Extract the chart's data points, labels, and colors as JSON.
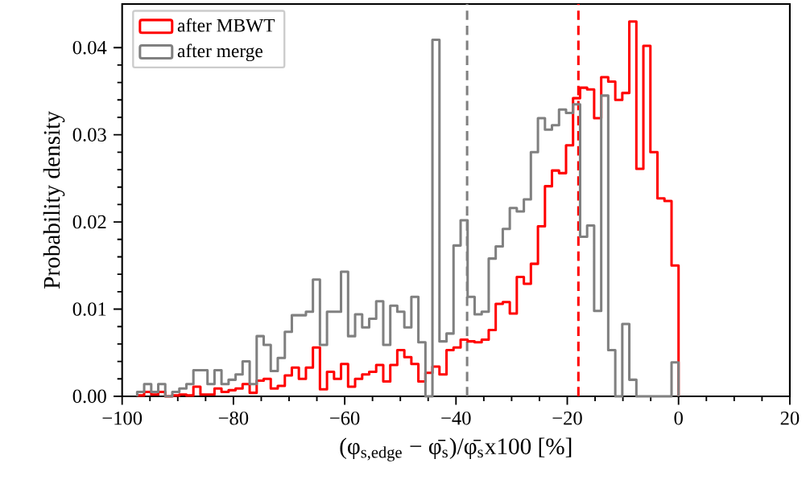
{
  "chart_data": {
    "type": "histogram",
    "xlabel": "(φ$_{s,edge}$ − φ̄$_{s}$)/φ̄$_{s}$x100 [%]",
    "ylabel": "Probability density",
    "bins": [
      -97.3,
      -96.04,
      -94.77,
      -93.51,
      -92.25,
      -90.98,
      -89.72,
      -88.45,
      -87.19,
      -85.93,
      -84.66,
      -83.4,
      -82.14,
      -80.87,
      -79.61,
      -78.35,
      -77.08,
      -75.82,
      -74.56,
      -73.29,
      -72.03,
      -70.76,
      -69.5,
      -68.24,
      -66.97,
      -65.71,
      -64.45,
      -63.18,
      -61.92,
      -60.66,
      -59.39,
      -58.13,
      -56.86,
      -55.6,
      -54.34,
      -53.07,
      -51.81,
      -50.55,
      -49.28,
      -48.02,
      -46.76,
      -45.49,
      -44.23,
      -42.97,
      -41.7,
      -40.44,
      -39.17,
      -37.91,
      -36.65,
      -35.38,
      -34.12,
      -32.86,
      -31.59,
      -30.33,
      -29.07,
      -27.8,
      -26.54,
      -25.27,
      -24.01,
      -22.75,
      -21.48,
      -20.22,
      -18.96,
      -17.69,
      -16.43,
      -15.17,
      -13.9,
      -12.64,
      -11.37,
      -10.11,
      -8.85,
      -7.58,
      -6.32,
      -5.06,
      -3.79,
      -2.53,
      -1.26,
      0
    ],
    "series": [
      {
        "name": "after MBWT",
        "color": "#ff0000",
        "values": [
          0.0001,
          0.0005,
          0.0002,
          0.0005,
          0,
          0.0001,
          0.0002,
          0.0001,
          0.0011,
          0.0002,
          0.0002,
          0.0009,
          0.0005,
          0.0007,
          0.0009,
          0.0014,
          0.0004,
          0.0018,
          0.002,
          0.0009,
          0.0012,
          0.0024,
          0.0033,
          0.002,
          0.0033,
          0.0056,
          0.0008,
          0.0028,
          0.002,
          0.0037,
          0.0011,
          0.002,
          0.0025,
          0.0028,
          0.0036,
          0.0017,
          0.0036,
          0.0053,
          0.0045,
          0.0037,
          0.0017,
          0.0027,
          0.0034,
          0.0025,
          0.0053,
          0.0056,
          0.0065,
          0.0063,
          0.0062,
          0.0065,
          0.0076,
          0.0106,
          0.0108,
          0.0095,
          0.0137,
          0.0129,
          0.0152,
          0.0195,
          0.0241,
          0.0259,
          0.0256,
          0.0288,
          0.0342,
          0.0354,
          0.0352,
          0.0319,
          0.0366,
          0.0361,
          0.034,
          0.0348,
          0.043,
          0.0261,
          0.0402,
          0.028,
          0.0227,
          0.0224,
          0.015
        ]
      },
      {
        "name": "after merge",
        "color": "#808080",
        "values": [
          0.0005,
          0.0014,
          0.0005,
          0.0014,
          0,
          0.0005,
          0.0009,
          0.0014,
          0.003,
          0.003,
          0.0014,
          0.003,
          0.0014,
          0.0019,
          0.0025,
          0.004,
          0.0014,
          0.0069,
          0.0059,
          0.0029,
          0.0044,
          0.0074,
          0.0093,
          0.0093,
          0.0097,
          0.0134,
          0.0059,
          0.0097,
          0.0097,
          0.0143,
          0.0069,
          0.0094,
          0.0079,
          0.0089,
          0.0109,
          0.0059,
          0.0104,
          0.0097,
          0.0079,
          0.0114,
          0.0062,
          0,
          0.0409,
          0.0063,
          0.0072,
          0.0173,
          0.0202,
          0.0114,
          0.0094,
          0.0097,
          0.0158,
          0.0172,
          0.0192,
          0.0216,
          0.0212,
          0.0226,
          0.028,
          0.0319,
          0.0306,
          0.0311,
          0.0329,
          0.0325,
          0.0335,
          0.0183,
          0.0196,
          0.0098,
          0.0345,
          0.0053,
          0,
          0.0083,
          0.0019,
          0,
          0,
          0,
          0,
          0,
          0.0039
        ]
      }
    ],
    "ref_lines": [
      {
        "axis": "x",
        "value": -38,
        "color": "#808080",
        "line_style": "dashed"
      },
      {
        "axis": "x",
        "value": -18,
        "color": "#ff0000",
        "line_style": "dashed"
      }
    ],
    "xlim": [
      -100,
      20
    ],
    "xticks": [
      {
        "value": -100,
        "label": "−100"
      },
      {
        "value": -80,
        "label": "−80"
      },
      {
        "value": -60,
        "label": "−60"
      },
      {
        "value": -40,
        "label": "−40"
      },
      {
        "value": -20,
        "label": "−20"
      },
      0,
      20
    ],
    "ylim": [
      0,
      0.045
    ],
    "yticks": [
      {
        "value": 0,
        "label": "0.00"
      },
      0.01,
      0.02,
      0.03,
      0.04
    ],
    "legend": "top left"
  }
}
